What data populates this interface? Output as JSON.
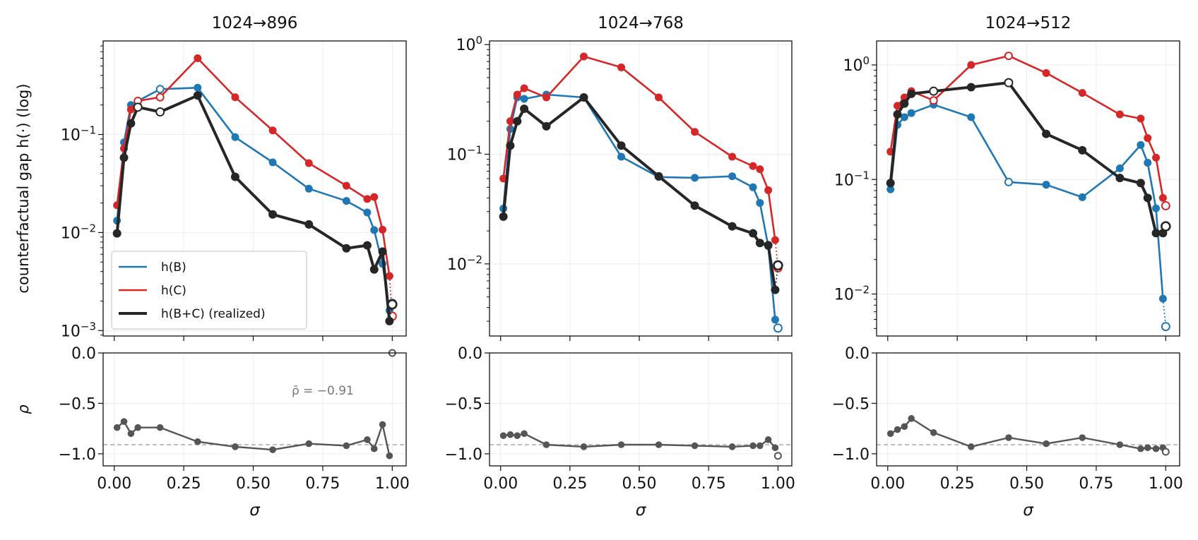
{
  "figure": {
    "ylabel_top": "counterfactual gap h(·) (log)",
    "ylabel_bottom": "ρ",
    "xlabel": "σ",
    "legend_location": "lower-left of first panel",
    "colors": {
      "B": "#1f77b4",
      "C": "#d62728",
      "BC": "#262626",
      "rho": "#555555",
      "ref": "#999999"
    }
  },
  "chart_data": [
    {
      "type": "line",
      "title": "1024→896",
      "xlabel": "σ",
      "ylabel": "counterfactual gap h(·) (log)",
      "yscale": "log",
      "xlim": [
        -0.04,
        1.05
      ],
      "ylim": [
        0.00088,
        0.9
      ],
      "yticks": [
        "10^-3",
        "10^-2",
        "10^-1"
      ],
      "xticks": [
        "0.00",
        "0.25",
        "0.50",
        "0.75",
        "1.00"
      ],
      "legend": [
        "h(B)",
        "h(C)",
        "h(B+C) (realized)"
      ],
      "series": [
        {
          "name": "h(B)",
          "color": "#1f77b4",
          "x": [
            0.01,
            0.035,
            0.06,
            0.085,
            0.165,
            0.3,
            0.435,
            0.57,
            0.7,
            0.835,
            0.91,
            0.935,
            0.965,
            0.99
          ],
          "y": [
            0.0132,
            0.083,
            0.2,
            0.22,
            0.29,
            0.3,
            0.094,
            0.052,
            0.028,
            0.021,
            0.016,
            0.0106,
            0.0048,
            0.0016
          ],
          "hollow": [
            false,
            false,
            false,
            false,
            true,
            false,
            false,
            false,
            false,
            false,
            false,
            false,
            false,
            false
          ],
          "limit": {
            "x": 1.0,
            "y": 0.0019,
            "hollow": true
          }
        },
        {
          "name": "h(C)",
          "color": "#d62728",
          "x": [
            0.01,
            0.035,
            0.06,
            0.085,
            0.165,
            0.3,
            0.435,
            0.57,
            0.7,
            0.835,
            0.91,
            0.935,
            0.965,
            0.99
          ],
          "y": [
            0.019,
            0.072,
            0.18,
            0.22,
            0.24,
            0.6,
            0.24,
            0.11,
            0.051,
            0.03,
            0.022,
            0.023,
            0.0107,
            0.0036
          ],
          "hollow": [
            false,
            false,
            false,
            true,
            true,
            false,
            false,
            false,
            false,
            false,
            false,
            false,
            false,
            false
          ],
          "limit": {
            "x": 1.0,
            "y": 0.0014,
            "hollow": true
          }
        },
        {
          "name": "h(B+C) (realized)",
          "color": "#262626",
          "x": [
            0.01,
            0.035,
            0.06,
            0.085,
            0.165,
            0.3,
            0.435,
            0.57,
            0.7,
            0.835,
            0.91,
            0.935,
            0.965,
            0.99
          ],
          "y": [
            0.0098,
            0.058,
            0.13,
            0.19,
            0.17,
            0.25,
            0.037,
            0.0153,
            0.0121,
            0.0069,
            0.0074,
            0.0042,
            0.0064,
            0.00125
          ],
          "hollow": [
            false,
            false,
            false,
            true,
            true,
            false,
            false,
            false,
            false,
            false,
            false,
            false,
            false,
            false
          ],
          "limit": {
            "x": 1.0,
            "y": 0.00185,
            "hollow": true
          }
        }
      ],
      "rho": {
        "ylabel": "ρ",
        "ylim": [
          -1.12,
          0.0
        ],
        "yticks": [
          "0.0",
          "−0.5",
          "−1.0"
        ],
        "ref": -0.91,
        "annotation": "ρ̄ = −0.91",
        "x": [
          0.01,
          0.035,
          0.06,
          0.085,
          0.165,
          0.3,
          0.435,
          0.57,
          0.7,
          0.835,
          0.91,
          0.935,
          0.965,
          0.99
        ],
        "y": [
          -0.74,
          -0.68,
          -0.8,
          -0.74,
          -0.74,
          -0.88,
          -0.93,
          -0.96,
          -0.9,
          -0.92,
          -0.86,
          -0.95,
          -0.71,
          -1.02
        ],
        "limit": {
          "x": 1.0,
          "y": 0.0,
          "hollow": true
        }
      }
    },
    {
      "type": "line",
      "title": "1024→768",
      "xlabel": "σ",
      "yscale": "log",
      "xlim": [
        -0.04,
        1.05
      ],
      "ylim": [
        0.0022,
        1.08
      ],
      "yticks": [
        "10^-2",
        "10^-1",
        "10^0"
      ],
      "xticks": [
        "0.00",
        "0.25",
        "0.50",
        "0.75",
        "1.00"
      ],
      "series": [
        {
          "name": "h(B)",
          "color": "#1f77b4",
          "x": [
            0.01,
            0.035,
            0.06,
            0.085,
            0.165,
            0.3,
            0.435,
            0.57,
            0.7,
            0.835,
            0.91,
            0.935,
            0.965,
            0.99
          ],
          "y": [
            0.032,
            0.17,
            0.33,
            0.32,
            0.35,
            0.33,
            0.095,
            0.062,
            0.061,
            0.063,
            0.05,
            0.036,
            0.0145,
            0.0031
          ],
          "hollow": [
            false,
            false,
            false,
            false,
            false,
            false,
            false,
            false,
            false,
            false,
            false,
            false,
            false,
            false
          ],
          "limit": {
            "x": 1.0,
            "y": 0.0026,
            "hollow": true
          }
        },
        {
          "name": "h(C)",
          "color": "#d62728",
          "x": [
            0.01,
            0.035,
            0.06,
            0.085,
            0.165,
            0.3,
            0.435,
            0.57,
            0.7,
            0.835,
            0.91,
            0.935,
            0.965,
            0.99
          ],
          "y": [
            0.06,
            0.2,
            0.35,
            0.4,
            0.33,
            0.78,
            0.62,
            0.33,
            0.16,
            0.095,
            0.078,
            0.073,
            0.047,
            0.0165
          ],
          "hollow": [
            false,
            false,
            false,
            false,
            false,
            false,
            false,
            false,
            false,
            false,
            false,
            false,
            false,
            false
          ],
          "limit": {
            "x": 1.0,
            "y": 0.0092,
            "hollow": true
          }
        },
        {
          "name": "h(B+C) (realized)",
          "color": "#262626",
          "x": [
            0.01,
            0.035,
            0.06,
            0.085,
            0.165,
            0.3,
            0.435,
            0.57,
            0.7,
            0.835,
            0.91,
            0.935,
            0.965,
            0.99
          ],
          "y": [
            0.027,
            0.12,
            0.2,
            0.26,
            0.18,
            0.33,
            0.12,
            0.063,
            0.034,
            0.022,
            0.019,
            0.0155,
            0.0148,
            0.0058
          ],
          "hollow": [
            false,
            false,
            false,
            false,
            false,
            false,
            false,
            false,
            false,
            false,
            false,
            false,
            false,
            false
          ],
          "limit": {
            "x": 1.0,
            "y": 0.0097,
            "hollow": true
          }
        }
      ],
      "rho": {
        "ylim": [
          -1.12,
          0.0
        ],
        "yticks": [
          "0.0",
          "−0.5",
          "−1.0"
        ],
        "ref": -0.91,
        "x": [
          0.01,
          0.035,
          0.06,
          0.085,
          0.165,
          0.3,
          0.435,
          0.57,
          0.7,
          0.835,
          0.91,
          0.935,
          0.965,
          0.99
        ],
        "y": [
          -0.82,
          -0.81,
          -0.82,
          -0.8,
          -0.91,
          -0.93,
          -0.91,
          -0.91,
          -0.92,
          -0.93,
          -0.92,
          -0.92,
          -0.86,
          -0.94
        ],
        "limit": {
          "x": 1.0,
          "y": -1.02,
          "hollow": true
        }
      }
    },
    {
      "type": "line",
      "title": "1024→512",
      "xlabel": "σ",
      "yscale": "log",
      "xlim": [
        -0.04,
        1.05
      ],
      "ylim": [
        0.0043,
        1.62
      ],
      "yticks": [
        "10^-2",
        "10^-1",
        "10^0"
      ],
      "xticks": [
        "0.00",
        "0.25",
        "0.50",
        "0.75",
        "1.00"
      ],
      "series": [
        {
          "name": "h(B)",
          "color": "#1f77b4",
          "x": [
            0.01,
            0.035,
            0.06,
            0.085,
            0.165,
            0.3,
            0.435,
            0.57,
            0.7,
            0.835,
            0.91,
            0.935,
            0.965,
            0.99
          ],
          "y": [
            0.082,
            0.3,
            0.35,
            0.38,
            0.45,
            0.35,
            0.095,
            0.09,
            0.07,
            0.125,
            0.2,
            0.14,
            0.056,
            0.0091
          ],
          "hollow": [
            false,
            false,
            false,
            false,
            false,
            false,
            true,
            false,
            false,
            false,
            false,
            false,
            false,
            false
          ],
          "limit": {
            "x": 1.0,
            "y": 0.0052,
            "hollow": true
          }
        },
        {
          "name": "h(C)",
          "color": "#d62728",
          "x": [
            0.01,
            0.035,
            0.06,
            0.085,
            0.165,
            0.3,
            0.435,
            0.57,
            0.7,
            0.835,
            0.91,
            0.935,
            0.965,
            0.99
          ],
          "y": [
            0.175,
            0.44,
            0.52,
            0.59,
            0.49,
            1.0,
            1.2,
            0.85,
            0.57,
            0.37,
            0.34,
            0.23,
            0.155,
            0.069
          ],
          "hollow": [
            false,
            false,
            false,
            false,
            true,
            false,
            true,
            false,
            false,
            false,
            false,
            false,
            false,
            false
          ],
          "limit": {
            "x": 1.0,
            "y": 0.059,
            "hollow": true
          }
        },
        {
          "name": "h(B+C) (realized)",
          "color": "#262626",
          "x": [
            0.01,
            0.035,
            0.06,
            0.085,
            0.165,
            0.3,
            0.435,
            0.57,
            0.7,
            0.835,
            0.91,
            0.935,
            0.965,
            0.99
          ],
          "y": [
            0.093,
            0.37,
            0.46,
            0.56,
            0.59,
            0.64,
            0.7,
            0.25,
            0.18,
            0.103,
            0.093,
            0.069,
            0.034,
            0.034
          ],
          "hollow": [
            false,
            false,
            false,
            false,
            true,
            false,
            true,
            false,
            false,
            false,
            false,
            false,
            false,
            false
          ],
          "limit": {
            "x": 1.0,
            "y": 0.039,
            "hollow": true
          }
        }
      ],
      "rho": {
        "ylim": [
          -1.12,
          0.0
        ],
        "yticks": [
          "0.0",
          "−0.5",
          "−1.0"
        ],
        "ref": -0.91,
        "x": [
          0.01,
          0.035,
          0.06,
          0.085,
          0.165,
          0.3,
          0.435,
          0.57,
          0.7,
          0.835,
          0.91,
          0.935,
          0.965,
          0.99
        ],
        "y": [
          -0.8,
          -0.76,
          -0.73,
          -0.65,
          -0.79,
          -0.93,
          -0.84,
          -0.9,
          -0.84,
          -0.91,
          -0.95,
          -0.94,
          -0.95,
          -0.94
        ],
        "limit": {
          "x": 1.0,
          "y": -0.98,
          "hollow": true
        }
      }
    }
  ]
}
